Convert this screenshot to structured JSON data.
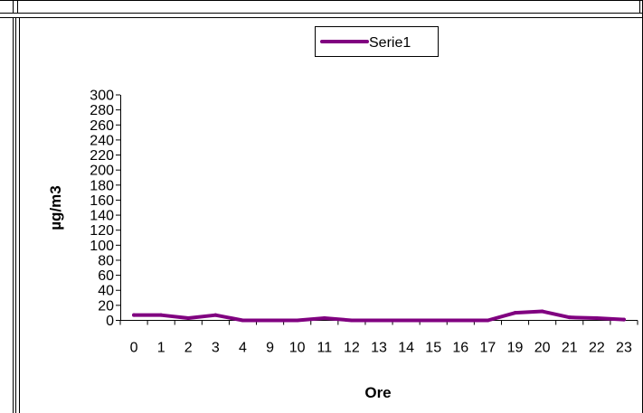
{
  "chart_data": {
    "type": "line",
    "categories": [
      "0",
      "1",
      "2",
      "3",
      "4",
      "9",
      "10",
      "11",
      "12",
      "13",
      "14",
      "15",
      "16",
      "17",
      "19",
      "20",
      "21",
      "22",
      "23"
    ],
    "series": [
      {
        "name": "Serie1",
        "values": [
          7,
          7,
          3,
          7,
          0,
          0,
          0,
          3,
          0,
          0,
          0,
          0,
          0,
          0,
          10,
          12,
          4,
          3,
          1
        ]
      }
    ],
    "xlabel": "Ore",
    "ylabel": "µg/m3",
    "ylim": [
      0,
      300
    ],
    "yticks": [
      0,
      20,
      40,
      60,
      80,
      100,
      120,
      140,
      160,
      180,
      200,
      220,
      240,
      260,
      280,
      300
    ],
    "grid": false,
    "legend_position": "top-center",
    "colors": {
      "series": "#800080",
      "axis": "#000000",
      "frame": "#000000"
    }
  }
}
